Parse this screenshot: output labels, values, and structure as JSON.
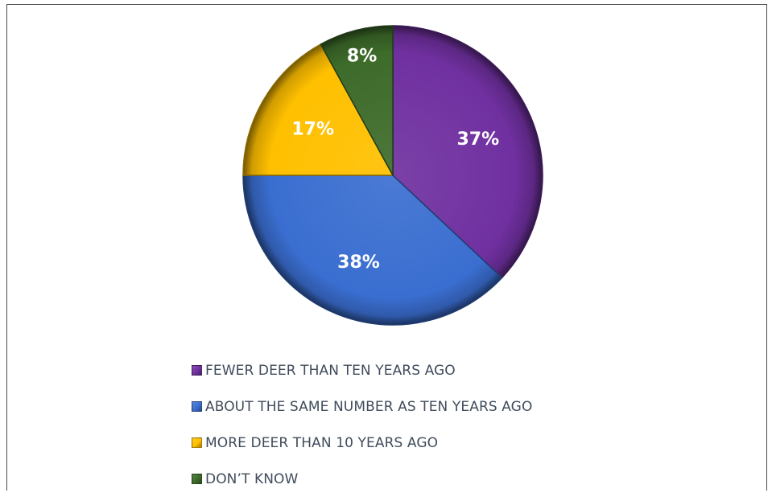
{
  "chart_data": {
    "type": "pie",
    "slices": [
      {
        "label": "FEWER DEER THAN TEN YEARS AGO",
        "value": 37,
        "display": "37%",
        "color": "#7030a0"
      },
      {
        "label": "ABOUT THE SAME NUMBER AS TEN YEARS AGO",
        "value": 38,
        "display": "38%",
        "color": "#3a6ed0"
      },
      {
        "label": "MORE DEER THAN 10 YEARS AGO",
        "value": 17,
        "display": "17%",
        "color": "#ffc000"
      },
      {
        "label": "DON’T KNOW",
        "value": 8,
        "display": "8%",
        "color": "#3d6b2a"
      }
    ],
    "legend_position": "bottom"
  }
}
